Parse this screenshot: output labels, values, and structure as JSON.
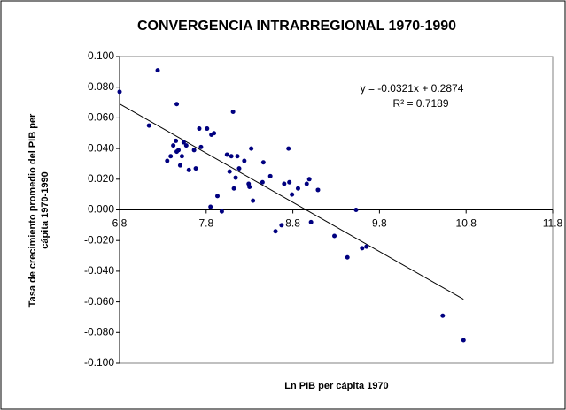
{
  "chart_data": {
    "type": "scatter",
    "title": "CONVERGENCIA INTRARREGIONAL 1970-1990",
    "x_label": "Ln PIB per cápita 1970",
    "y_label": [
      "Tasa de crecimiento promedio del PIB per",
      "cápita 1970-1990"
    ],
    "color": "#000080",
    "xlim": [
      6.8,
      11.8
    ],
    "xticks": [
      6.8,
      7.8,
      8.8,
      9.8,
      10.8,
      11.8
    ],
    "ylim": [
      -0.1,
      0.1
    ],
    "yticks": [
      {
        "value": -0.1,
        "label": "-0.100"
      },
      {
        "value": -0.08,
        "label": "-0.080"
      },
      {
        "value": -0.06,
        "label": "-0.060"
      },
      {
        "value": -0.04,
        "label": "-0.040"
      },
      {
        "value": -0.02,
        "label": "-0.020"
      },
      {
        "value": 0,
        "label": "0.000"
      },
      {
        "value": 0.02,
        "label": "0.020"
      },
      {
        "value": 0.04,
        "label": "0.040"
      },
      {
        "value": 0.06,
        "label": "0.060"
      },
      {
        "value": 0.08,
        "label": "0.080"
      },
      {
        "value": 0.1,
        "label": "0.100"
      }
    ],
    "grid": false,
    "x": [
      6.8,
      7.24,
      7.14,
      7.46,
      7.35,
      7.39,
      7.42,
      7.45,
      7.46,
      7.48,
      7.5,
      7.52,
      7.54,
      7.57,
      7.6,
      7.66,
      7.68,
      7.72,
      7.74,
      7.81,
      7.86,
      7.89,
      7.93,
      7.85,
      7.98,
      8.04,
      8.07,
      8.09,
      8.11,
      8.14,
      8.12,
      8.16,
      8.18,
      8.24,
      8.29,
      8.3,
      8.32,
      8.34,
      8.45,
      8.46,
      8.54,
      8.6,
      8.67,
      8.7,
      8.75,
      8.76,
      8.79,
      8.86,
      8.96,
      8.99,
      9.01,
      9.09,
      9.28,
      9.43,
      9.53,
      9.6,
      9.65,
      10.53,
      10.77
    ],
    "values": [
      0.077,
      0.091,
      0.055,
      0.069,
      0.032,
      0.035,
      0.042,
      0.045,
      0.038,
      0.039,
      0.029,
      0.035,
      0.044,
      0.042,
      0.026,
      0.039,
      0.027,
      0.053,
      0.041,
      0.053,
      0.049,
      0.05,
      0.009,
      0.002,
      -0.001,
      0.036,
      0.025,
      0.035,
      0.064,
      0.021,
      0.014,
      0.035,
      0.027,
      0.032,
      0.017,
      0.015,
      0.04,
      0.006,
      0.018,
      0.031,
      0.022,
      -0.014,
      -0.01,
      0.017,
      0.04,
      0.018,
      0.01,
      0.014,
      0.017,
      0.02,
      -0.008,
      0.013,
      -0.017,
      -0.031,
      0.0,
      -0.025,
      -0.024,
      -0.069,
      -0.085
    ],
    "trendline": {
      "equation": "y = -0.0321x + 0.2874",
      "r_squared": "R² = 0.7189",
      "slope": -0.0321,
      "intercept": 0.2874
    }
  }
}
